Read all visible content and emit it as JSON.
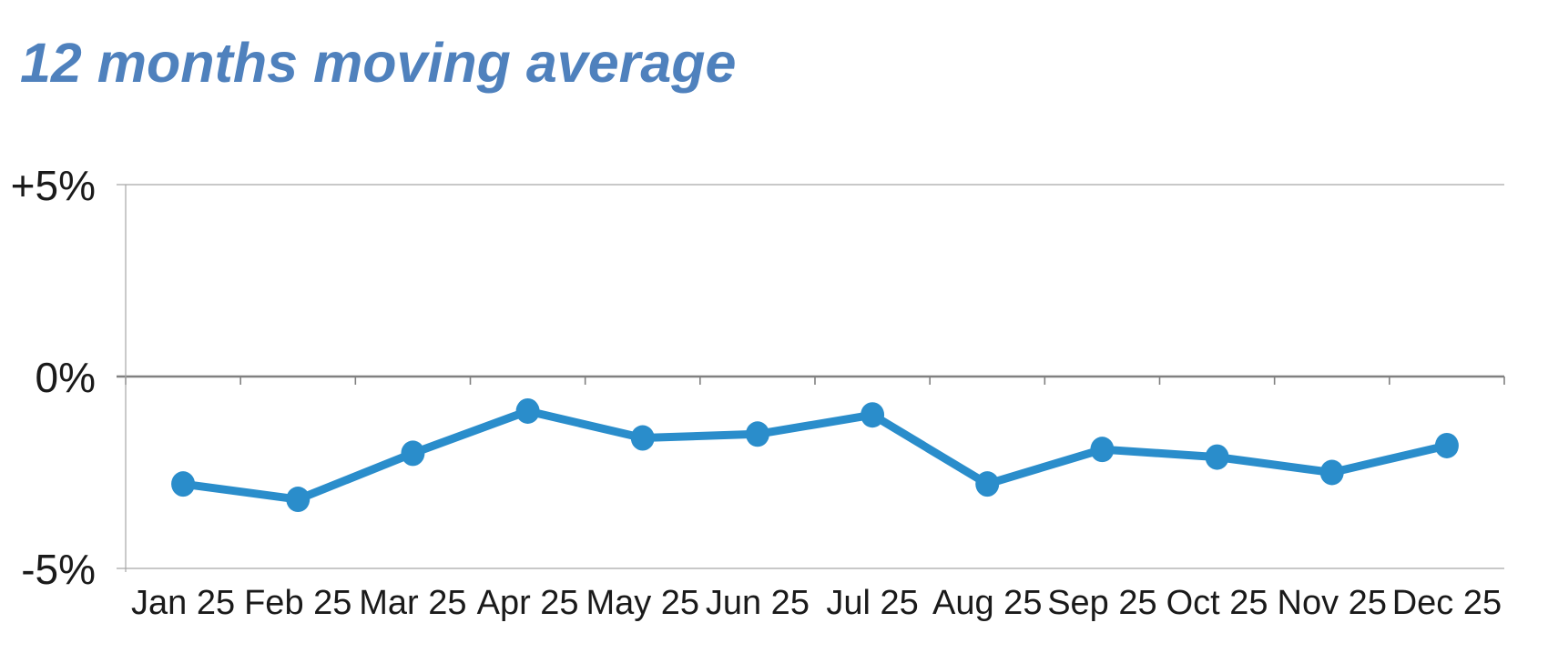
{
  "title": {
    "text": "12 months moving average",
    "color": "#4f81bd"
  },
  "chart_data": {
    "type": "line",
    "title": "12 months moving average",
    "categories": [
      "Jan 25",
      "Feb 25",
      "Mar 25",
      "Apr 25",
      "May 25",
      "Jun 25",
      "Jul 25",
      "Aug 25",
      "Sep 25",
      "Oct 25",
      "Nov 25",
      "Dec 25"
    ],
    "series": [
      {
        "name": "12 months moving average",
        "values": [
          -2.8,
          -3.2,
          -2.0,
          -0.9,
          -1.6,
          -1.5,
          -1.0,
          -2.8,
          -1.9,
          -2.1,
          -2.5,
          -1.8
        ]
      }
    ],
    "unit": "%",
    "xlabel": "",
    "ylabel": "",
    "ylim": [
      -5,
      5
    ],
    "yticks": [
      {
        "value": 5,
        "label": "+5%"
      },
      {
        "value": 0,
        "label": "0%"
      },
      {
        "value": -5,
        "label": "-5%"
      }
    ],
    "legend": "none",
    "grid": "horizontal lines at +5% and -5%, emphasized zero axis with category tick marks",
    "colors": {
      "line": "#2a8dcb",
      "marker": "#2a8dcb",
      "zero_axis": "#808080",
      "gridline": "#a6a6a6",
      "tick": "#808080",
      "label_text": "#1a1a1a",
      "title_text": "#4f81bd",
      "background": "#ffffff"
    }
  }
}
